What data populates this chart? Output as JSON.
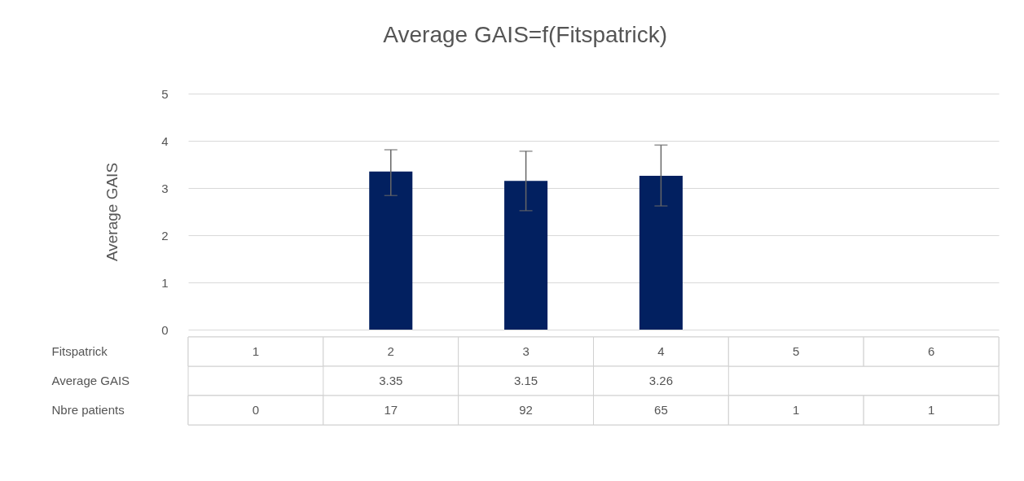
{
  "chart_data": {
    "type": "bar",
    "title": "Average GAIS=f(Fitspatrick)",
    "xlabel": "Fitspatrick",
    "ylabel": "Average GAIS",
    "categories": [
      "1",
      "2",
      "3",
      "4",
      "5",
      "6"
    ],
    "values": [
      null,
      3.35,
      3.15,
      3.26,
      0,
      0
    ],
    "value_labels": [
      null,
      "3.35",
      "3.15",
      "3.26",
      null,
      null
    ],
    "errors": [
      null,
      [
        2.84,
        3.81
      ],
      [
        2.52,
        3.78
      ],
      [
        2.62,
        3.91
      ],
      null,
      null
    ],
    "color": "#022060",
    "ylim": [
      0,
      5
    ],
    "yticks": [
      0,
      1,
      2,
      3,
      4,
      5
    ],
    "grid": "y",
    "annotations": [
      "Nbre patients",
      "0",
      "17",
      "92",
      "65",
      "1",
      "1"
    ]
  }
}
